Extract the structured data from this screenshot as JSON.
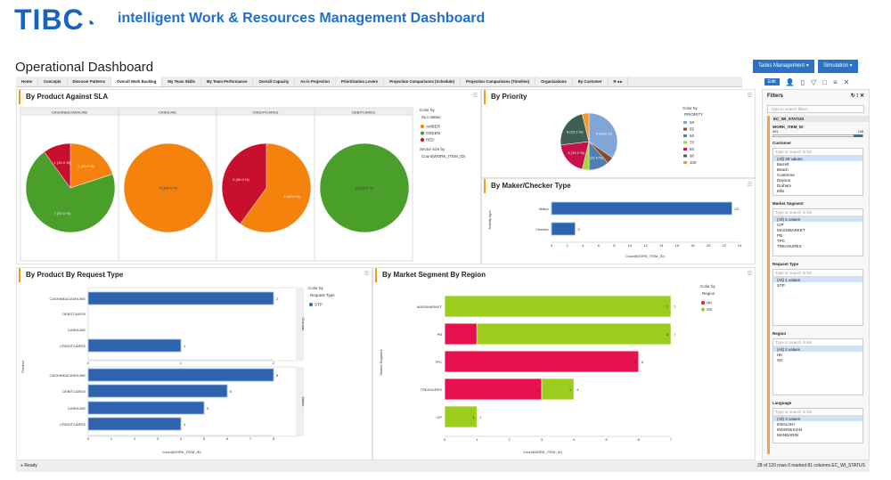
{
  "header": {
    "logo": "TIBC",
    "subtitle": "intelligent Work & Resources Management Dashboard",
    "page_title": "Operational Dashboard",
    "buttons": [
      "Tasks Management ▾",
      "Simulation ▾"
    ]
  },
  "tabs": [
    {
      "label": "Home"
    },
    {
      "label": "Concepts"
    },
    {
      "label": "Discover Patterns"
    },
    {
      "label": "Overall Work Backlog",
      "active": true
    },
    {
      "label": "My Team Skills"
    },
    {
      "label": "My Team Performance"
    },
    {
      "label": "Overall Capacity"
    },
    {
      "label": "As-is Projection"
    },
    {
      "label": "Prioritization Levers"
    },
    {
      "label": "Projection Comparisons (Schedule)"
    },
    {
      "label": "Projection Comparisons (Timeline)"
    },
    {
      "label": "Organizations"
    },
    {
      "label": "By Customer"
    },
    {
      "label": "R ◂ ▸"
    }
  ],
  "toolbar": {
    "edit": "Edit"
  },
  "filters": {
    "title": "Filters",
    "search_placeholder": "Type to search filters",
    "group": "EC_WI_STATUS",
    "range_label": "WORK_ITEM_ID",
    "range_min": "491",
    "range_max": "748",
    "sections": [
      {
        "title": "Customer",
        "placeholder": "Type to search in list",
        "items": [
          "(All) 28 values",
          "Barrett",
          "Beach",
          "Contreras",
          "Daysus",
          "Durham",
          "Ellis"
        ]
      },
      {
        "title": "Market Segment",
        "placeholder": "Type to search in list",
        "items": [
          "(All) 6 values",
          "CIP",
          "MASSMARKET",
          "PB",
          "TPC",
          "TREASURES"
        ]
      },
      {
        "title": "Request Type",
        "placeholder": "Type to search in list",
        "items": [
          "(All) 1 values",
          "STP"
        ]
      },
      {
        "title": "Region",
        "placeholder": "Type to search in list",
        "items": [
          "(All) 2 values",
          "HK",
          "SG"
        ]
      },
      {
        "title": "Language",
        "placeholder": "Type to search in list",
        "items": [
          "(All) 3 values",
          "ENGLISH",
          "INDONESIAN",
          "MANDARIN"
        ]
      }
    ]
  },
  "status": {
    "ready": "Ready",
    "info": "28 of 120 rows    0 marked    81 columns    EC_WI_STATUS"
  },
  "colors": {
    "amber": "#f5820d",
    "green": "#4a9e2a",
    "red": "#c8102e",
    "bar": "#2f63ad",
    "hk": "#e8104f",
    "sg": "#9ccc1c"
  },
  "chart_data": [
    {
      "title": "By Product Against SLA",
      "type": "pie",
      "color_by_label": "Color by",
      "color_by": "SLA status",
      "size_by_label": "Sector size by",
      "size_by": "Count(WORK_ITEM_ID)",
      "legend": [
        {
          "name": "AMBER",
          "color": "#f5820d"
        },
        {
          "name": "GREEN",
          "color": "#4a9e2a"
        },
        {
          "name": "RED",
          "color": "#c8102e"
        }
      ],
      "facets": [
        {
          "name": "CASHINE&CASHLINE",
          "slices": [
            {
              "cat": "AMBER",
              "value": 2,
              "label": "2 (20.0 %)"
            },
            {
              "cat": "GREEN",
              "value": 7,
              "label": "7 (70.0 %)"
            },
            {
              "cat": "RED",
              "value": 1,
              "label": "1 (10.0 %)"
            }
          ]
        },
        {
          "name": "CASHLINE",
          "slices": [
            {
              "cat": "AMBER",
              "value": 5,
              "label": "5 (100.0 %)"
            }
          ]
        },
        {
          "name": "CREDITCARDS",
          "slices": [
            {
              "cat": "AMBER",
              "value": 3,
              "label": "3 (60.0 %)"
            },
            {
              "cat": "RED",
              "value": 2,
              "label": "2 (40.0 %)"
            }
          ]
        },
        {
          "name": "DEBITCARDS",
          "slices": [
            {
              "cat": "GREEN",
              "value": 6,
              "label": "6 (100.0 %)"
            }
          ]
        }
      ]
    },
    {
      "title": "By Priority",
      "type": "pie",
      "color_by_label": "Color by",
      "color_by": "PRIORITY",
      "slices": [
        {
          "name": "50",
          "value": 9,
          "color": "#7fa6d6",
          "label": "9 (34.6 %)"
        },
        {
          "name": "55",
          "value": 1,
          "color": "#8a4b2a"
        },
        {
          "name": "60",
          "value": 3,
          "color": "#4f7fb5",
          "label": "3 (11.5 %)"
        },
        {
          "name": "70",
          "value": 1,
          "color": "#a6d53a"
        },
        {
          "name": "80",
          "value": 5,
          "color": "#c8104a",
          "label": "5 (19.2 %)"
        },
        {
          "name": "90",
          "value": 6,
          "color": "#3f5f56",
          "label": "6 (23.1 %)"
        },
        {
          "name": "100",
          "value": 1,
          "color": "#f29a2e"
        }
      ]
    },
    {
      "title": "By Maker/Checker Type",
      "type": "bar",
      "ylabel": "Activity type",
      "xlabel": "Count(WORK_ITEM_ID)",
      "categories": [
        "Maker",
        "Checker"
      ],
      "values": [
        23,
        3
      ],
      "xlim": [
        0,
        24
      ],
      "xticks": [
        0,
        2,
        4,
        6,
        8,
        10,
        12,
        14,
        16,
        18,
        20,
        22,
        24
      ]
    },
    {
      "title": "By Product By Request Type",
      "type": "bar",
      "ylabel": "Product",
      "xlabel": "Count(WORK_ITEM_ID)",
      "color_by_label": "Color by",
      "color_by": "Request Type",
      "legend": [
        {
          "name": "STP",
          "color": "#2f63ad"
        }
      ],
      "facets": [
        {
          "name": "Checker",
          "categories": [
            "CASHINE&CASHLINE",
            "DEBITCARDS",
            "CASHLINE",
            "CREDITCARDS"
          ],
          "values": [
            2,
            null,
            null,
            1
          ],
          "xticks": [
            0,
            1,
            2
          ]
        },
        {
          "name": "Maker",
          "categories": [
            "CASHINE&CASHLINE",
            "DEBITCARDS",
            "CASHLINE",
            "CREDITCARDS"
          ],
          "values": [
            8,
            6,
            5,
            4
          ],
          "xticks": [
            0,
            1,
            2,
            3,
            4,
            5,
            6,
            7,
            8
          ]
        }
      ]
    },
    {
      "title": "By Market Segment By Region",
      "type": "bar",
      "stacked": true,
      "ylabel": "Market Segment",
      "xlabel": "Count(WORK_ITEM_ID)",
      "color_by_label": "Color by",
      "color_by": "Region",
      "categories": [
        "MASSMARKET",
        "PB",
        "TPC",
        "TREASURES",
        "CIP"
      ],
      "series": [
        {
          "name": "HK",
          "color": "#e8104f",
          "values": [
            0,
            1,
            6,
            3,
            0
          ]
        },
        {
          "name": "SG",
          "color": "#9ccc1c",
          "values": [
            7,
            6,
            0,
            1,
            1
          ]
        }
      ],
      "totals": [
        7,
        7,
        6,
        4,
        1
      ],
      "xticks": [
        0,
        1,
        2,
        3,
        4,
        5,
        6,
        7
      ]
    }
  ]
}
